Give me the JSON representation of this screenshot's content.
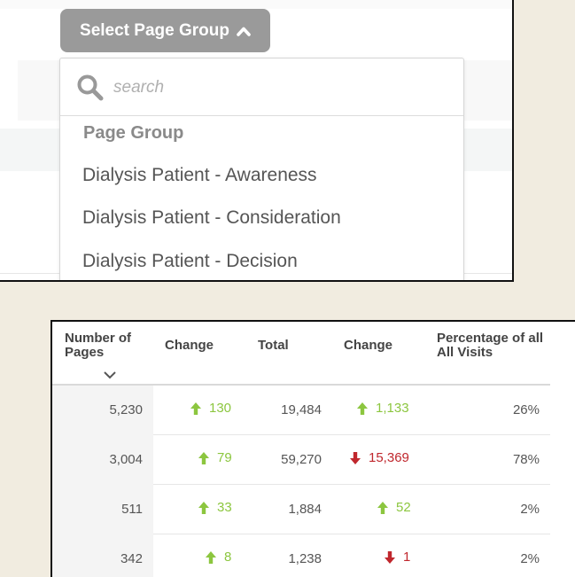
{
  "page_group_selector": {
    "button_label": "Select Page Group",
    "search_placeholder": "search",
    "header": "Page Group",
    "items": [
      "Dialysis Patient - Awareness",
      "Dialysis Patient - Consideration",
      "Dialysis Patient - Decision"
    ]
  },
  "table": {
    "headers": {
      "number_of_pages": "Number of Pages",
      "change_1": "Change",
      "total": "Total",
      "change_2": "Change",
      "percentage": "Percentage of all All Visits"
    },
    "rows": [
      {
        "pages": "5,230",
        "change1": "130",
        "change1_dir": "up",
        "total": "19,484",
        "change2": "1,133",
        "change2_dir": "up",
        "percentage": "26%"
      },
      {
        "pages": "3,004",
        "change1": "79",
        "change1_dir": "up",
        "total": "59,270",
        "change2": "15,369",
        "change2_dir": "down",
        "percentage": "78%"
      },
      {
        "pages": "511",
        "change1": "33",
        "change1_dir": "up",
        "total": "1,884",
        "change2": "52",
        "change2_dir": "up",
        "percentage": "2%"
      },
      {
        "pages": "342",
        "change1": "8",
        "change1_dir": "up",
        "total": "1,238",
        "change2": "1",
        "change2_dir": "down",
        "percentage": "2%"
      }
    ]
  },
  "colors": {
    "up": "#8cc63f",
    "down": "#c0272d",
    "button": "#9a9a9a",
    "page_background": "#f1ece0"
  },
  "icons": [
    "chevron-up-icon",
    "search-icon",
    "sort-chevron-down-icon",
    "arrow-up-icon",
    "arrow-down-icon"
  ]
}
